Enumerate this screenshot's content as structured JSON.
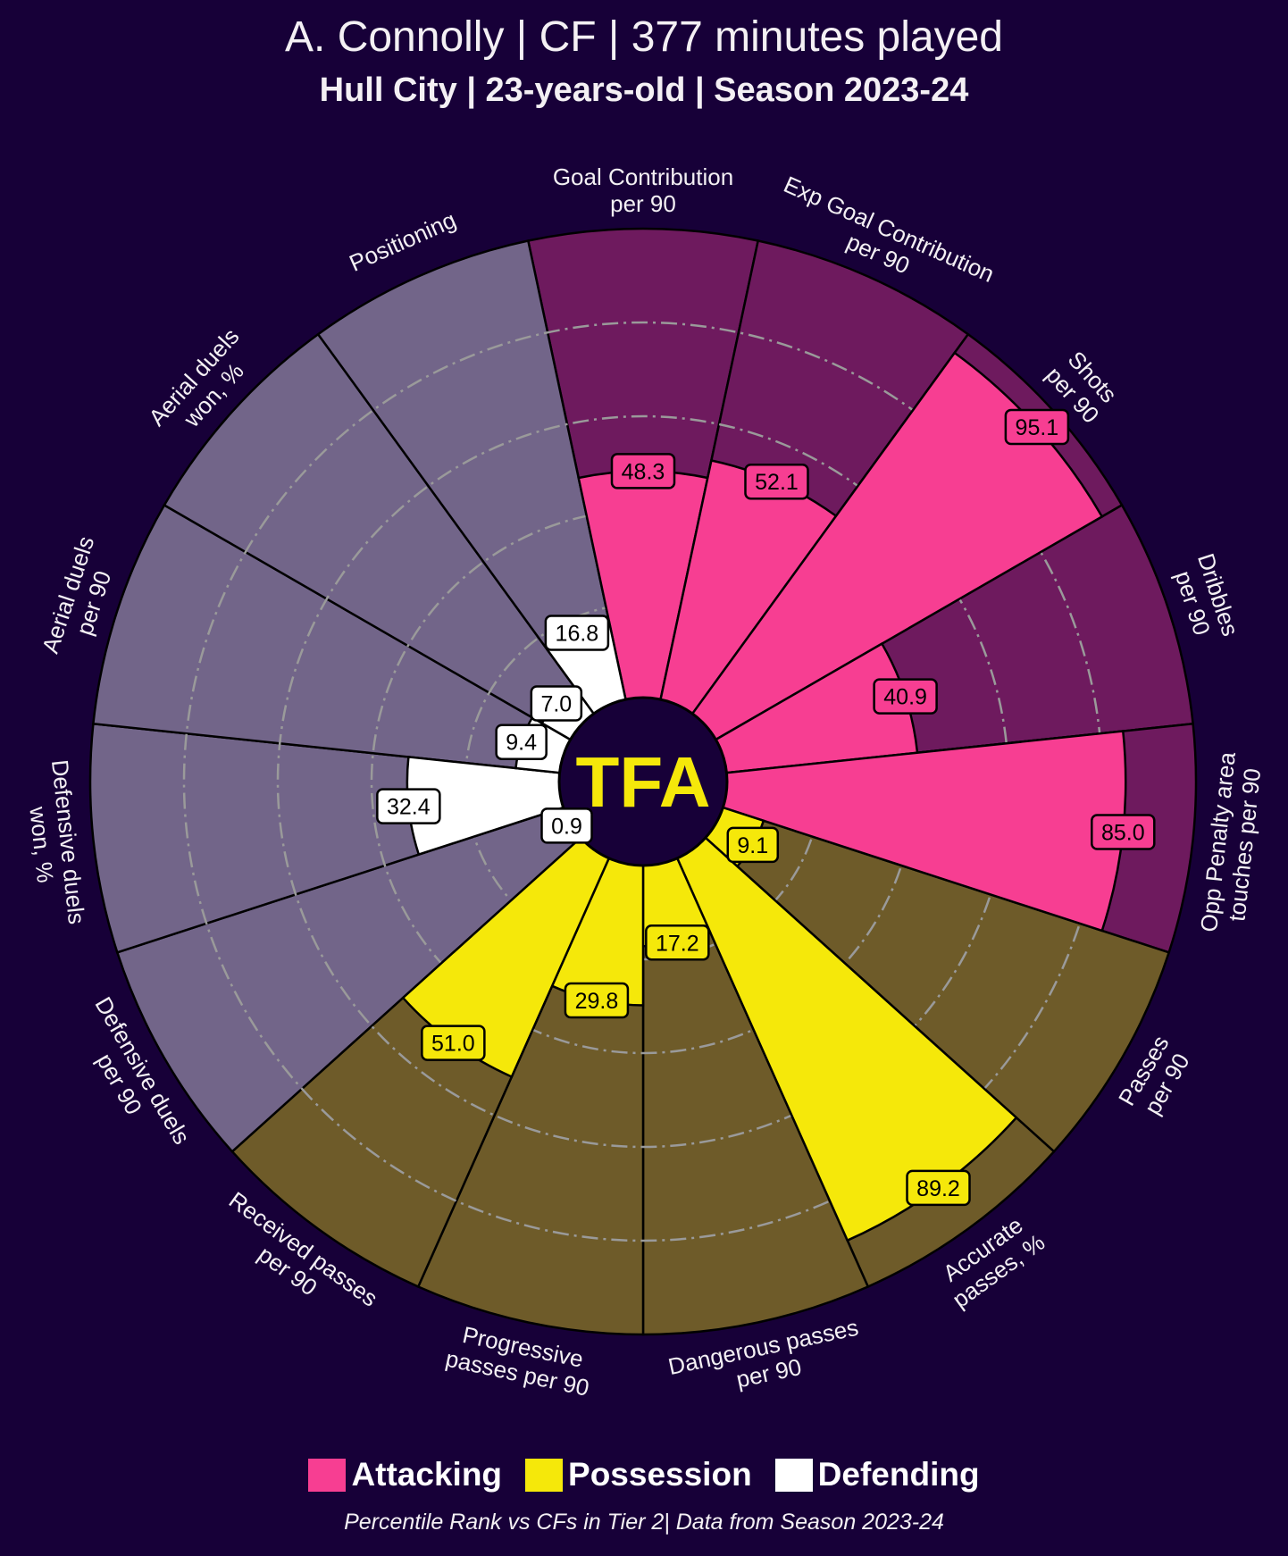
{
  "header": {
    "title": "A. Connolly | CF | 377 minutes played",
    "subtitle": "Hull City | 23-years-old | Season 2023-24"
  },
  "logo_text": "TFA",
  "legend": [
    {
      "label": "Attacking",
      "color": "#F73E92"
    },
    {
      "label": "Possession",
      "color": "#F5E80A"
    },
    {
      "label": "Defending",
      "color": "#FFFFFF"
    }
  ],
  "footer": "Percentile Rank vs CFs in Tier 2| Data from Season 2023-24",
  "chart_data": {
    "type": "pizza",
    "title": "A. Connolly | CF | 377 minutes played",
    "value_range": [
      0,
      100
    ],
    "grid_values": [
      20,
      40,
      60,
      80
    ],
    "groups": {
      "Attacking": {
        "value_color": "#F73E92",
        "bg_color": "#6E1A5E",
        "text_color": "#000000"
      },
      "Possession": {
        "value_color": "#F5E80A",
        "bg_color": "#6E5B29",
        "text_color": "#000000"
      },
      "Defending": {
        "value_color": "#FFFFFF",
        "bg_color": "#726589",
        "text_color": "#000000"
      }
    },
    "params": [
      {
        "label": [
          "Goal Contribution",
          "per 90"
        ],
        "value": 48.3,
        "group": "Attacking"
      },
      {
        "label": [
          "Exp Goal Contribution",
          "per 90"
        ],
        "value": 52.1,
        "group": "Attacking"
      },
      {
        "label": [
          "Shots",
          "per 90"
        ],
        "value": 95.1,
        "group": "Attacking"
      },
      {
        "label": [
          "Dribbles",
          "per 90"
        ],
        "value": 40.9,
        "group": "Attacking"
      },
      {
        "label": [
          "Opp Penalty area",
          "touches per 90"
        ],
        "value": 85.0,
        "group": "Attacking"
      },
      {
        "label": [
          "Passes",
          "per 90"
        ],
        "value": 9.1,
        "group": "Possession"
      },
      {
        "label": [
          "Accurate",
          "passes, %"
        ],
        "value": 89.2,
        "group": "Possession"
      },
      {
        "label": [
          "Dangerous passes",
          "per 90"
        ],
        "value": 17.2,
        "group": "Possession"
      },
      {
        "label": [
          "Progressive",
          "passes per 90"
        ],
        "value": 29.8,
        "group": "Possession"
      },
      {
        "label": [
          "Received passes",
          "per 90"
        ],
        "value": 51.0,
        "group": "Possession"
      },
      {
        "label": [
          "Defensive duels",
          "per 90"
        ],
        "value": 0.9,
        "group": "Defending"
      },
      {
        "label": [
          "Defensive duels",
          "won, %"
        ],
        "value": 32.4,
        "group": "Defending"
      },
      {
        "label": [
          "Aerial duels",
          "per 90"
        ],
        "value": 9.4,
        "group": "Defending"
      },
      {
        "label": [
          "Aerial duels",
          "won, %"
        ],
        "value": 7.0,
        "group": "Defending"
      },
      {
        "label": [
          "Positioning"
        ],
        "value": 16.8,
        "group": "Defending"
      }
    ]
  }
}
